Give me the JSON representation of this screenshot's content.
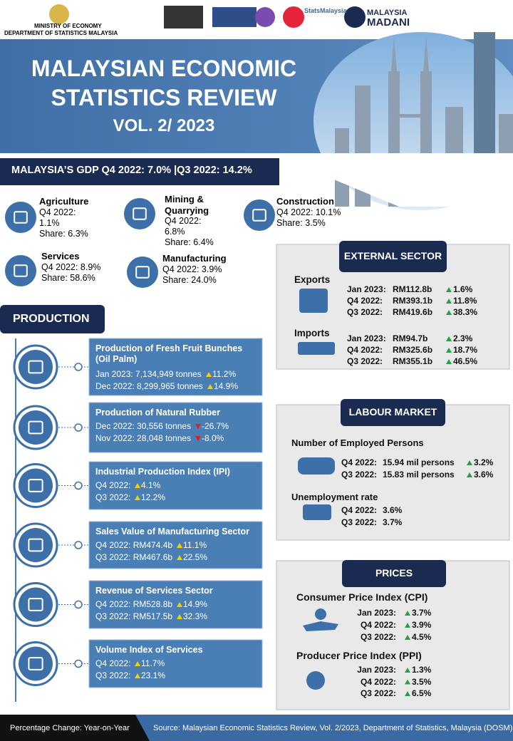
{
  "header": {
    "ministry": "MINISTRY OF ECONOMY",
    "department": "DEPARTMENT OF STATISTICS MALAYSIA",
    "stats_brand": "StatsMalaysia",
    "madani_1": "MALAYSIA",
    "madani_2": "MADANI",
    "title_1": "MALAYSIAN ECONOMIC",
    "title_2": "STATISTICS REVIEW",
    "volume": "VOL. 2/ 2023"
  },
  "gdp_banner": "MALAYSIA’S GDP Q4 2022: 7.0% |Q3 2022: 14.2%",
  "sectors": [
    {
      "name": "Agriculture",
      "q4": "Q4 2022: 1.1%",
      "share": "Share: 6.3%"
    },
    {
      "name": "Mining & Quarrying",
      "q4": "Q4 2022: 6.8%",
      "share": "Share: 6.4%"
    },
    {
      "name": "Construction",
      "q4": "Q4 2022: 10.1%",
      "share": "Share: 3.5%"
    },
    {
      "name": "Services",
      "q4": "Q4 2022: 8.9%",
      "share": "Share: 58.6%"
    },
    {
      "name": "Manufacturing",
      "q4": "Q4 2022: 3.9%",
      "share": "Share: 24.0%"
    }
  ],
  "production": {
    "title": "PRODUCTION",
    "items": [
      {
        "title": "Production of Fresh Fruit Bunches (Oil Palm)",
        "rows": [
          {
            "label": "Jan 2023: 7,134,949 tonnes",
            "change": "11.2%"
          },
          {
            "label": "Dec 2022: 8,299,965 tonnes",
            "change": "14.9%"
          }
        ]
      },
      {
        "title": "Production of Natural Rubber",
        "rows": [
          {
            "label": "Dec 2022: 30,556 tonnes",
            "change": "-26.7%"
          },
          {
            "label": "Nov 2022: 28,048 tonnes",
            "change": "-8.0%"
          }
        ]
      },
      {
        "title": "Industrial Production Index (IPI)",
        "rows": [
          {
            "label": "Q4 2022:",
            "change": "4.1%"
          },
          {
            "label": "Q3 2022:",
            "change": "12.2%"
          }
        ]
      },
      {
        "title": "Sales Value of Manufacturing Sector",
        "rows": [
          {
            "label": "Q4 2022: RM474.4b",
            "change": "11.1%"
          },
          {
            "label": "Q3 2022: RM467.6b",
            "change": "22.5%"
          }
        ]
      },
      {
        "title": "Revenue of Services Sector",
        "rows": [
          {
            "label": "Q4 2022: RM528.8b",
            "change": "14.9%"
          },
          {
            "label": "Q3 2022: RM517.5b",
            "change": "32.3%"
          }
        ]
      },
      {
        "title": "Volume Index of Services",
        "rows": [
          {
            "label": "Q4 2022:",
            "change": "11.7%"
          },
          {
            "label": "Q3 2022:",
            "change": "23.1%"
          }
        ]
      }
    ]
  },
  "external": {
    "title": "EXTERNAL SECTOR",
    "exports": {
      "label": "Exports",
      "rows": [
        {
          "period": "Jan 2023:",
          "value": "RM112.8b",
          "change": "1.6%"
        },
        {
          "period": "Q4 2022:",
          "value": "RM393.1b",
          "change": "11.8%"
        },
        {
          "period": "Q3 2022:",
          "value": "RM419.6b",
          "change": "38.3%"
        }
      ]
    },
    "imports": {
      "label": "Imports",
      "rows": [
        {
          "period": "Jan 2023:",
          "value": "RM94.7b",
          "change": "2.3%"
        },
        {
          "period": "Q4 2022:",
          "value": "RM325.6b",
          "change": "18.7%"
        },
        {
          "period": "Q3 2022:",
          "value": "RM355.1b",
          "change": "46.5%"
        }
      ]
    }
  },
  "labour": {
    "title": "LABOUR MARKET",
    "employed": {
      "label": "Number of Employed Persons",
      "rows": [
        {
          "period": "Q4 2022:",
          "value": "15.94 mil persons",
          "change": "3.2%"
        },
        {
          "period": "Q3 2022:",
          "value": "15.83 mil persons",
          "change": "3.6%"
        }
      ]
    },
    "unemployment": {
      "label": "Unemployment rate",
      "rows": [
        {
          "period": "Q4 2022:",
          "value": "3.6%"
        },
        {
          "period": "Q3 2022:",
          "value": "3.7%"
        }
      ]
    }
  },
  "prices": {
    "title": "PRICES",
    "cpi": {
      "label": "Consumer Price Index (CPI)",
      "rows": [
        {
          "period": "Jan 2023:",
          "change": "3.7%"
        },
        {
          "period": "Q4 2022:",
          "change": "3.9%"
        },
        {
          "period": "Q3 2022:",
          "change": "4.5%"
        }
      ]
    },
    "ppi": {
      "label": "Producer Price Index (PPI)",
      "rows": [
        {
          "period": "Jan 2023:",
          "change": "1.3%"
        },
        {
          "period": "Q4 2022:",
          "change": "3.5%"
        },
        {
          "period": "Q3 2022:",
          "change": "6.5%"
        }
      ]
    }
  },
  "footer": {
    "note": "Percentage Change: Year-on-Year",
    "source": "Source: Malaysian Economic Statistics Review, Vol. 2/2023, Department of Statistics, Malaysia (DOSM)"
  }
}
